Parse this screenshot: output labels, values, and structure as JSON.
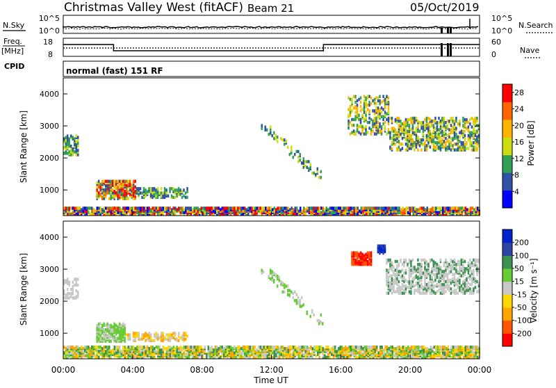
{
  "header": {
    "title": "Christmas Valley West (fitACF)",
    "beam": "Beam 21",
    "date": "05/Oct/2019"
  },
  "housekeeping": {
    "nsky_label": "N.Sky",
    "nsky_ticks": [
      "10^5",
      "10^0"
    ],
    "nsearch_label": "N.Search",
    "freq_label": "Freq.",
    "freq_unit": "[MHz]",
    "freq_ticks": [
      "18",
      "8"
    ],
    "nave_ticks": [
      "60",
      "0"
    ],
    "nave_label": "Nave",
    "cpid_label": "CPID",
    "cpid_value": "normal (fast) 151 RF"
  },
  "colors": {
    "power": [
      "#0000ff",
      "#2f52a5",
      "#32a056",
      "#ccdd11",
      "#ffb300",
      "#ff6600",
      "#ff0000"
    ],
    "velocity": [
      "#ff0000",
      "#ff5500",
      "#ffa500",
      "#ffd700",
      "#c8c8c8",
      "#66cc33",
      "#3d9150",
      "#2a46a0",
      "#0022cc"
    ]
  },
  "chart_data": [
    {
      "type": "heatmap",
      "quantity": "power",
      "ylabel": "Slant Range [km]",
      "yticks": [
        1000,
        2000,
        3000,
        4000
      ],
      "ylim": [
        200,
        4500
      ],
      "xlim": [
        0,
        24
      ],
      "colorbar_label": "Power [dB]",
      "colorbar_ticks": [
        4,
        8,
        12,
        16,
        20,
        24,
        28
      ],
      "colorbar_range": [
        0,
        30
      ],
      "regions": [
        {
          "t0": 0.0,
          "t1": 0.9,
          "r0": 2050,
          "r1": 2650,
          "density": 0.55,
          "levels": [
            1,
            2,
            3
          ]
        },
        {
          "t0": 1.9,
          "t1": 4.2,
          "r0": 680,
          "r1": 1250,
          "density": 0.7,
          "levels": [
            1,
            2,
            3,
            4,
            5,
            6
          ]
        },
        {
          "t0": 4.2,
          "t1": 7.2,
          "r0": 720,
          "r1": 1000,
          "density": 0.5,
          "levels": [
            1,
            2,
            3
          ]
        },
        {
          "t0": 11.4,
          "t1": 15.0,
          "r0": 1250,
          "r1": 3000,
          "density": 0.25,
          "levels": [
            1,
            2,
            3
          ],
          "band": true
        },
        {
          "t0": 16.4,
          "t1": 18.8,
          "r0": 2700,
          "r1": 3900,
          "density": 0.35,
          "levels": [
            1,
            2,
            3,
            4
          ]
        },
        {
          "t0": 18.8,
          "t1": 24.0,
          "r0": 2200,
          "r1": 3200,
          "density": 0.45,
          "levels": [
            1,
            2,
            3,
            4
          ]
        },
        {
          "t0": 0.0,
          "t1": 24.0,
          "r0": 200,
          "r1": 420,
          "density": 0.85,
          "levels": [
            0,
            1,
            2,
            3,
            4,
            5,
            6
          ]
        }
      ]
    },
    {
      "type": "heatmap",
      "quantity": "velocity",
      "ylabel": "Slant Range [km]",
      "yticks": [
        1000,
        2000,
        3000,
        4000
      ],
      "ylim": [
        200,
        4500
      ],
      "xlabel": "Time UT",
      "xticks": [
        "00:00",
        "04:00",
        "08:00",
        "12:00",
        "16:00",
        "20:00",
        "00:00"
      ],
      "xlim": [
        0,
        24
      ],
      "colorbar_label": "Velocity [m s⁻¹]",
      "colorbar_ticks": [
        200,
        100,
        50,
        15,
        -15,
        -50,
        -100,
        -200
      ],
      "regions": [
        {
          "t0": 0.0,
          "t1": 0.9,
          "r0": 2050,
          "r1": 2650,
          "density": 0.45,
          "levels": [
            4
          ]
        },
        {
          "t0": 1.9,
          "t1": 3.6,
          "r0": 700,
          "r1": 1250,
          "density": 0.75,
          "levels": [
            5,
            5,
            4
          ]
        },
        {
          "t0": 3.6,
          "t1": 7.2,
          "r0": 720,
          "r1": 980,
          "density": 0.5,
          "levels": [
            3,
            4,
            2
          ]
        },
        {
          "t0": 11.4,
          "t1": 15.0,
          "r0": 1250,
          "r1": 3000,
          "density": 0.25,
          "levels": [
            4,
            5
          ],
          "band": true
        },
        {
          "t0": 16.6,
          "t1": 17.8,
          "r0": 3100,
          "r1": 3500,
          "density": 0.8,
          "levels": [
            0,
            1
          ]
        },
        {
          "t0": 18.1,
          "t1": 18.6,
          "r0": 3450,
          "r1": 3700,
          "density": 0.8,
          "levels": [
            8,
            7
          ]
        },
        {
          "t0": 18.6,
          "t1": 24.0,
          "r0": 2200,
          "r1": 3250,
          "density": 0.45,
          "levels": [
            4,
            4,
            6
          ]
        },
        {
          "t0": 0.0,
          "t1": 24.0,
          "r0": 200,
          "r1": 520,
          "density": 0.75,
          "levels": [
            3,
            4,
            5,
            2,
            6
          ]
        }
      ]
    }
  ]
}
